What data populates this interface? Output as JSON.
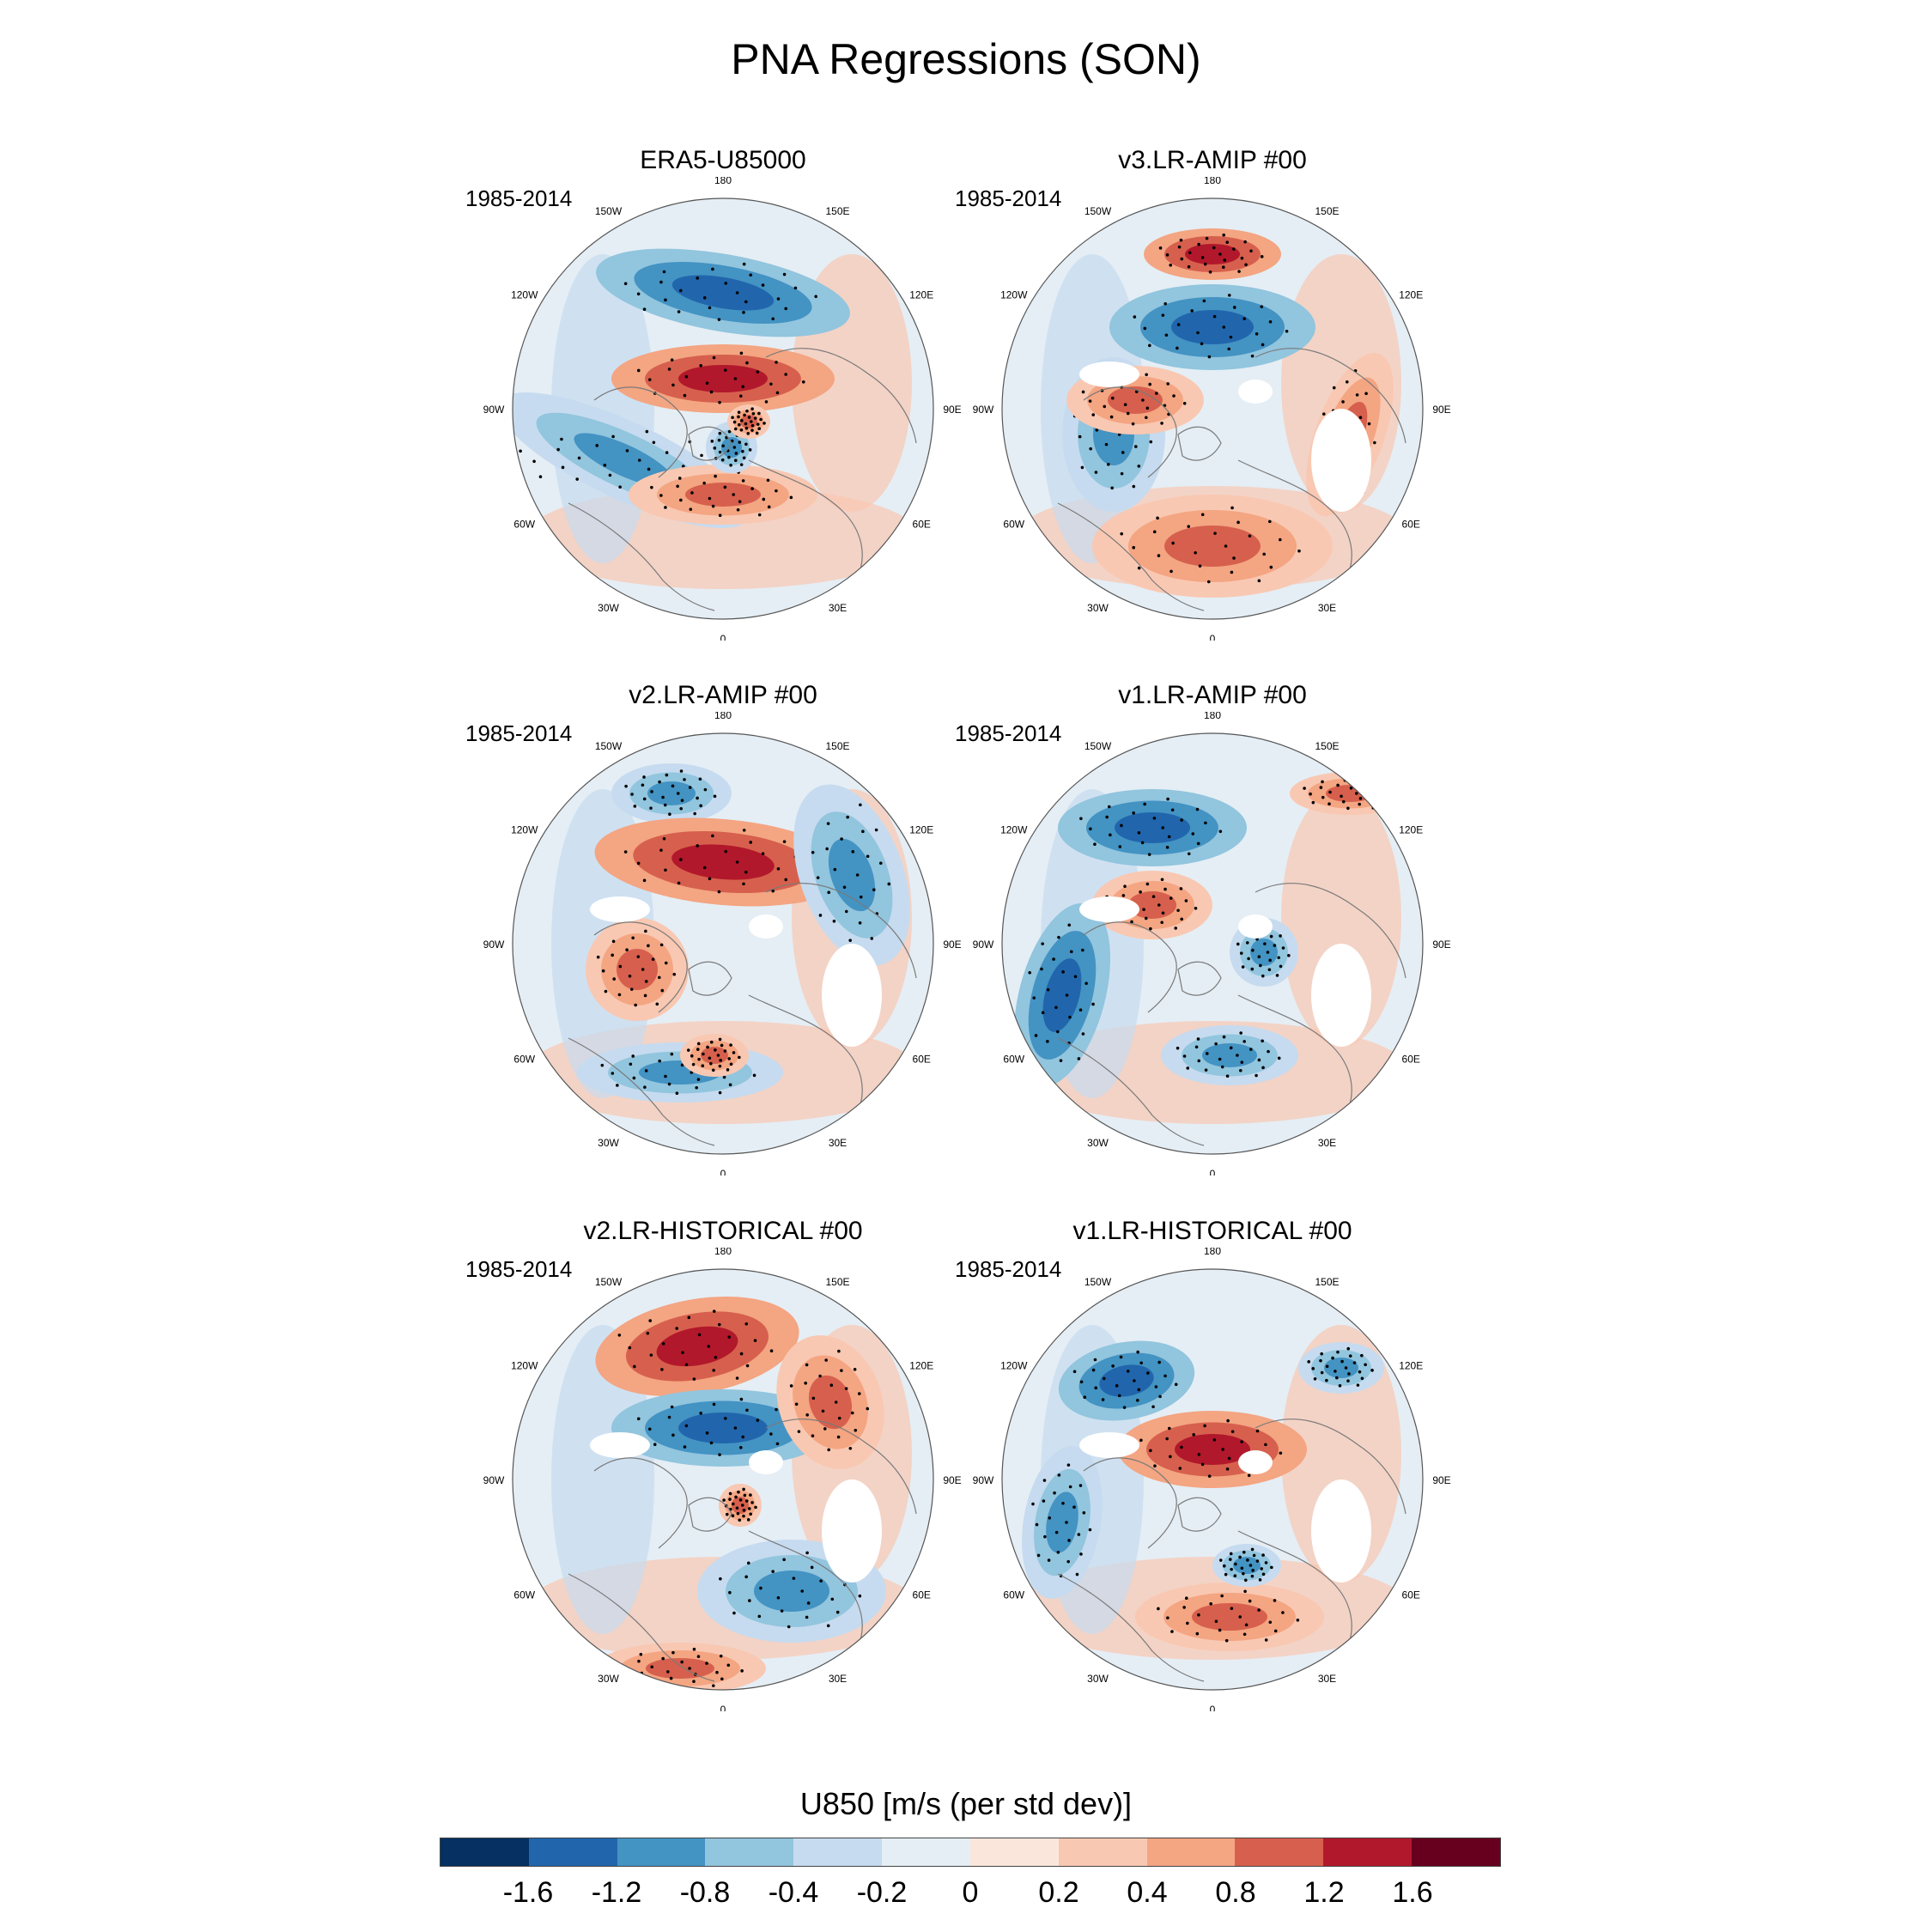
{
  "title": "PNA Regressions (SON)",
  "panels": [
    {
      "title": "ERA5-U85000",
      "period": "1985-2014"
    },
    {
      "title": "v3.LR-AMIP  #00",
      "period": "1985-2014"
    },
    {
      "title": "v2.LR-AMIP  #00",
      "period": "1985-2014"
    },
    {
      "title": "v1.LR-AMIP  #00",
      "period": "1985-2014"
    },
    {
      "title": "v2.LR-HISTORICAL  #00",
      "period": "1985-2014"
    },
    {
      "title": "v1.LR-HISTORICAL  #00",
      "period": "1985-2014"
    }
  ],
  "lon_labels": [
    "180",
    "150E",
    "120E",
    "90E",
    "60E",
    "30E",
    "0",
    "30W",
    "60W",
    "90W",
    "120W",
    "150W"
  ],
  "colorbar": {
    "title": "U850 [m/s (per std dev)]",
    "colors": [
      "#053061",
      "#2166ac",
      "#4393c3",
      "#92c5de",
      "#c6dbef",
      "#e5eef5",
      "#fbe6dc",
      "#f9c8b2",
      "#f4a582",
      "#d6604d",
      "#b2182b",
      "#67001f"
    ],
    "labels": [
      "-1.6",
      "-1.2",
      "-0.8",
      "-0.4",
      "-0.2",
      "0",
      "0.2",
      "0.4",
      "0.8",
      "1.2",
      "1.6"
    ]
  },
  "colors": {
    "ocean_base": "#e5eef5",
    "coast": "#7a7a7a"
  }
}
